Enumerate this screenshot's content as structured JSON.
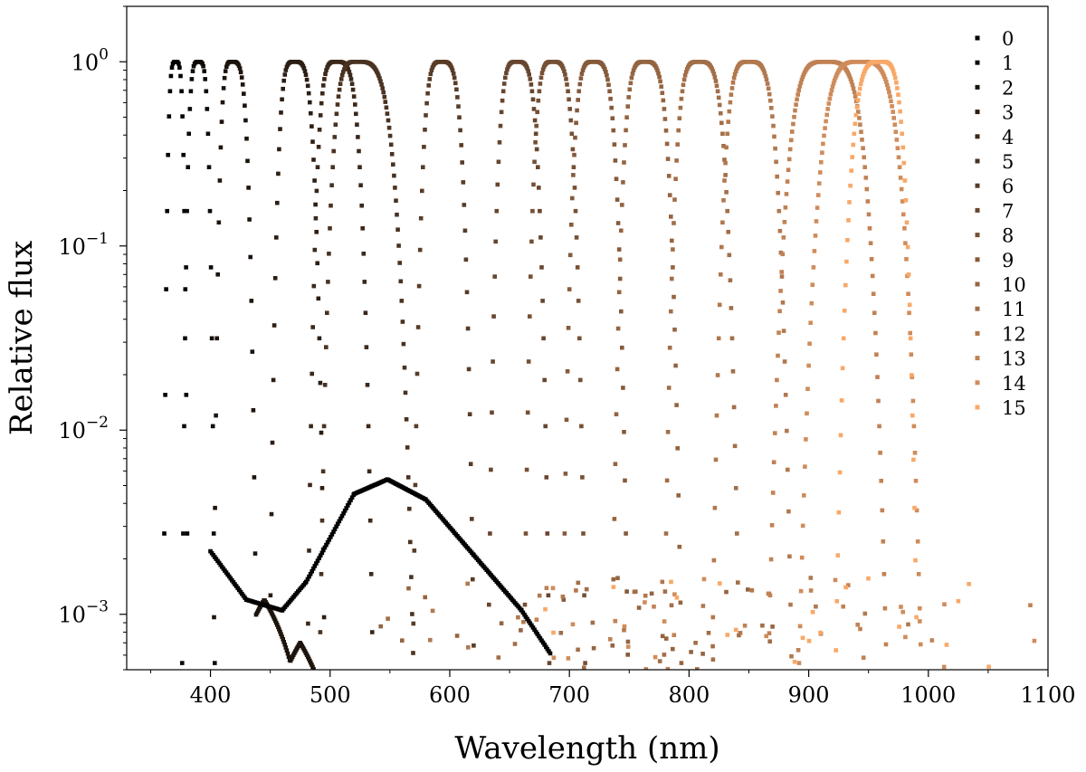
{
  "chart_data": {
    "type": "scatter",
    "title": "",
    "xlabel": "Wavelength (nm)",
    "ylabel": "Relative flux",
    "xscale": "linear",
    "yscale": "log",
    "xlim": [
      330,
      1100
    ],
    "ylim": [
      0.0005,
      2.0
    ],
    "x_ticks": [
      400,
      500,
      600,
      700,
      800,
      900,
      1000,
      1100
    ],
    "x_tick_labels": [
      "400",
      "500",
      "600",
      "700",
      "800",
      "900",
      "1000",
      "1100"
    ],
    "y_ticks": [
      0.001,
      0.01,
      0.1,
      1
    ],
    "y_tick_labels": [
      {
        "base": "10",
        "exp": "−3"
      },
      {
        "base": "10",
        "exp": "−2"
      },
      {
        "base": "10",
        "exp": "−1"
      },
      {
        "base": "10",
        "exp": "0"
      }
    ],
    "grid": false,
    "legend_position": "top-right",
    "series": [
      {
        "name": "0",
        "color": "#000000",
        "peak_nm": 371,
        "sigma": [
          6,
          6
        ],
        "range": [
          355,
          385
        ],
        "shoulders": []
      },
      {
        "name": "1",
        "color": "#0f0a07",
        "peak_nm": 390,
        "sigma": [
          8,
          8
        ],
        "range": [
          370,
          415
        ],
        "shoulders": []
      },
      {
        "name": "2",
        "color": "#1d140d",
        "peak_nm": 418,
        "sigma": [
          9,
          12
        ],
        "range": [
          395,
          500
        ],
        "shoulders": [
          [
            445,
            0.0012
          ],
          [
            475,
            0.0007
          ]
        ]
      },
      {
        "name": "3",
        "color": "#2c1e14",
        "peak_nm": 470,
        "sigma": [
          12,
          15
        ],
        "range": [
          415,
          515
        ],
        "shoulders": []
      },
      {
        "name": "4",
        "color": "#3b281a",
        "peak_nm": 505,
        "sigma": [
          14,
          18
        ],
        "range": [
          440,
          560
        ],
        "shoulders": []
      },
      {
        "name": "5",
        "color": "#4a3221",
        "peak_nm": 522,
        "sigma": [
          18,
          28
        ],
        "range": [
          455,
          640
        ],
        "shoulders": []
      },
      {
        "name": "6",
        "color": "#583c27",
        "peak_nm": 593,
        "sigma": [
          14,
          16
        ],
        "range": [
          540,
          650
        ],
        "shoulders": []
      },
      {
        "name": "7",
        "color": "#67462e",
        "peak_nm": 656,
        "sigma": [
          14,
          16
        ],
        "range": [
          600,
          715
        ],
        "shoulders": []
      },
      {
        "name": "8",
        "color": "#765034",
        "peak_nm": 686,
        "sigma": [
          14,
          16
        ],
        "range": [
          630,
          745
        ],
        "shoulders": []
      },
      {
        "name": "9",
        "color": "#855a3b",
        "peak_nm": 720,
        "sigma": [
          15,
          17
        ],
        "range": [
          660,
          780
        ],
        "shoulders": []
      },
      {
        "name": "10",
        "color": "#946441",
        "peak_nm": 763,
        "sigma": [
          16,
          18
        ],
        "range": [
          700,
          830
        ],
        "shoulders": []
      },
      {
        "name": "11",
        "color": "#a26e48",
        "peak_nm": 808,
        "sigma": [
          17,
          20
        ],
        "range": [
          740,
          890
        ],
        "shoulders": []
      },
      {
        "name": "12",
        "color": "#b1784e",
        "peak_nm": 850,
        "sigma": [
          18,
          21
        ],
        "range": [
          780,
          935
        ],
        "shoulders": []
      },
      {
        "name": "13",
        "color": "#c08255",
        "peak_nm": 914,
        "sigma": [
          28,
          30
        ],
        "range": [
          815,
          1050
        ],
        "shoulders": []
      },
      {
        "name": "14",
        "color": "#cf8c5b",
        "peak_nm": 943,
        "sigma": [
          30,
          30
        ],
        "range": [
          840,
          1075
        ],
        "shoulders": []
      },
      {
        "name": "15",
        "color": "#f8a868",
        "peak_nm": 960,
        "sigma": [
          22,
          18
        ],
        "range": [
          870,
          1010
        ],
        "shoulders": []
      }
    ],
    "background_spectrum": {
      "name": "0",
      "description_values": [
        [
          400,
          0.0022
        ],
        [
          430,
          0.0012
        ],
        [
          460,
          0.00105
        ],
        [
          480,
          0.0015
        ],
        [
          520,
          0.0045
        ],
        [
          548,
          0.0054
        ],
        [
          580,
          0.0042
        ],
        [
          620,
          0.0021
        ],
        [
          660,
          0.00105
        ],
        [
          685,
          0.0006
        ]
      ]
    }
  }
}
